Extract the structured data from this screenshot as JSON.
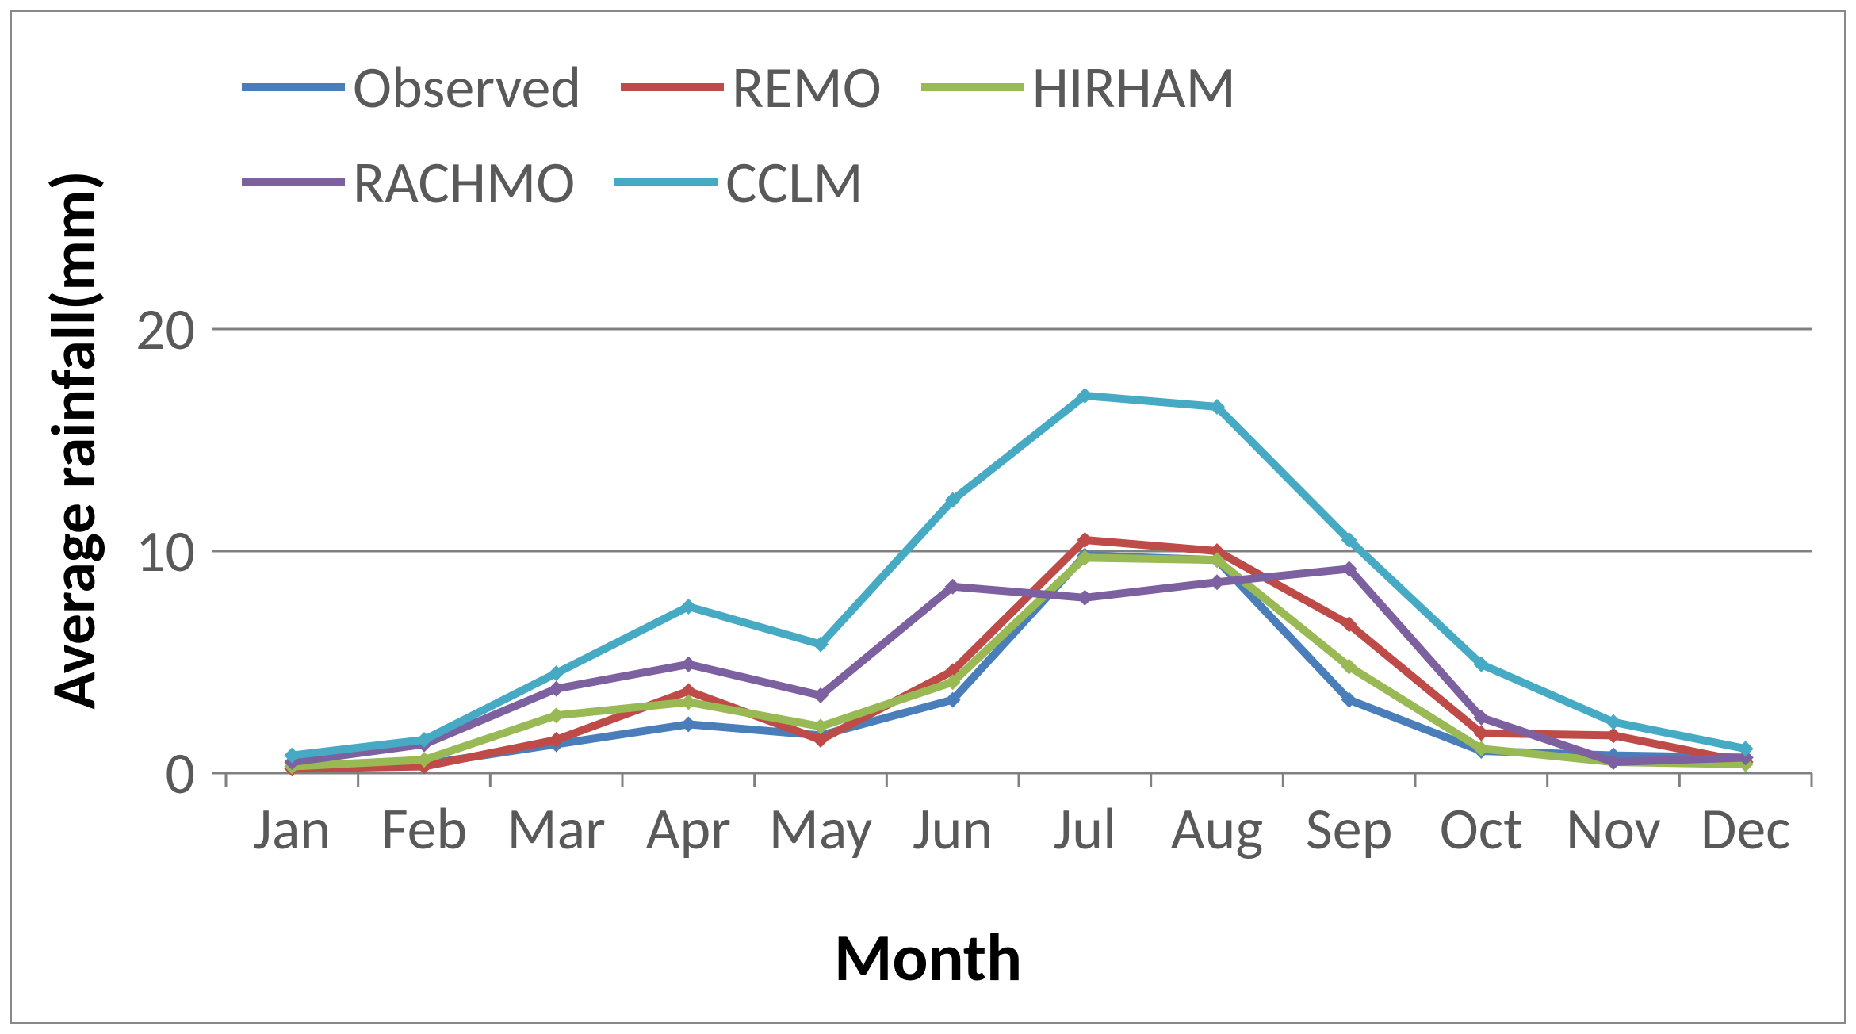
{
  "chart": {
    "type": "line",
    "xlabel": "Month",
    "ylabel": "Average rainfall(mm)",
    "xlabel_fontsize": 84,
    "ylabel_fontsize": 78,
    "label_fontweight": "bold",
    "tick_fontsize": 74,
    "legend_fontsize": 74,
    "background_color": "#ffffff",
    "border_color": "#888888",
    "grid_color": "#808080",
    "text_color": "#595959",
    "label_color": "#000000",
    "ylim": [
      0,
      20
    ],
    "ytick_step": 10,
    "yticks": [
      0,
      10,
      20
    ],
    "line_width": 10,
    "marker_style": "diamond",
    "marker_size": 10,
    "categories": [
      "Jan",
      "Feb",
      "Mar",
      "Apr",
      "May",
      "Jun",
      "Jul",
      "Aug",
      "Sep",
      "Oct",
      "Nov",
      "Dec"
    ],
    "series": [
      {
        "name": "Observed",
        "color": "#4a7ebb",
        "values": [
          0.3,
          0.4,
          1.3,
          2.2,
          1.7,
          3.3,
          9.8,
          9.6,
          3.3,
          1.0,
          0.8,
          0.7
        ]
      },
      {
        "name": "REMO",
        "color": "#be4b48",
        "values": [
          0.2,
          0.3,
          1.5,
          3.7,
          1.5,
          4.6,
          10.5,
          10.0,
          6.7,
          1.8,
          1.7,
          0.5
        ]
      },
      {
        "name": "HIRHAM",
        "color": "#98b954",
        "values": [
          0.3,
          0.6,
          2.6,
          3.2,
          2.1,
          4.1,
          9.7,
          9.6,
          4.8,
          1.1,
          0.5,
          0.4
        ]
      },
      {
        "name": "RACHMO",
        "color": "#7d60a0",
        "values": [
          0.5,
          1.3,
          3.8,
          4.9,
          3.5,
          8.4,
          7.9,
          8.6,
          9.2,
          2.5,
          0.5,
          0.7
        ]
      },
      {
        "name": "CCLM",
        "color": "#46aac5",
        "values": [
          0.8,
          1.5,
          4.5,
          7.5,
          5.8,
          12.3,
          17.0,
          16.5,
          10.5,
          4.9,
          2.3,
          1.1
        ]
      }
    ],
    "legend_layout": [
      [
        "Observed",
        "REMO",
        "HIRHAM"
      ],
      [
        "RACHMO",
        "CCLM"
      ]
    ]
  }
}
